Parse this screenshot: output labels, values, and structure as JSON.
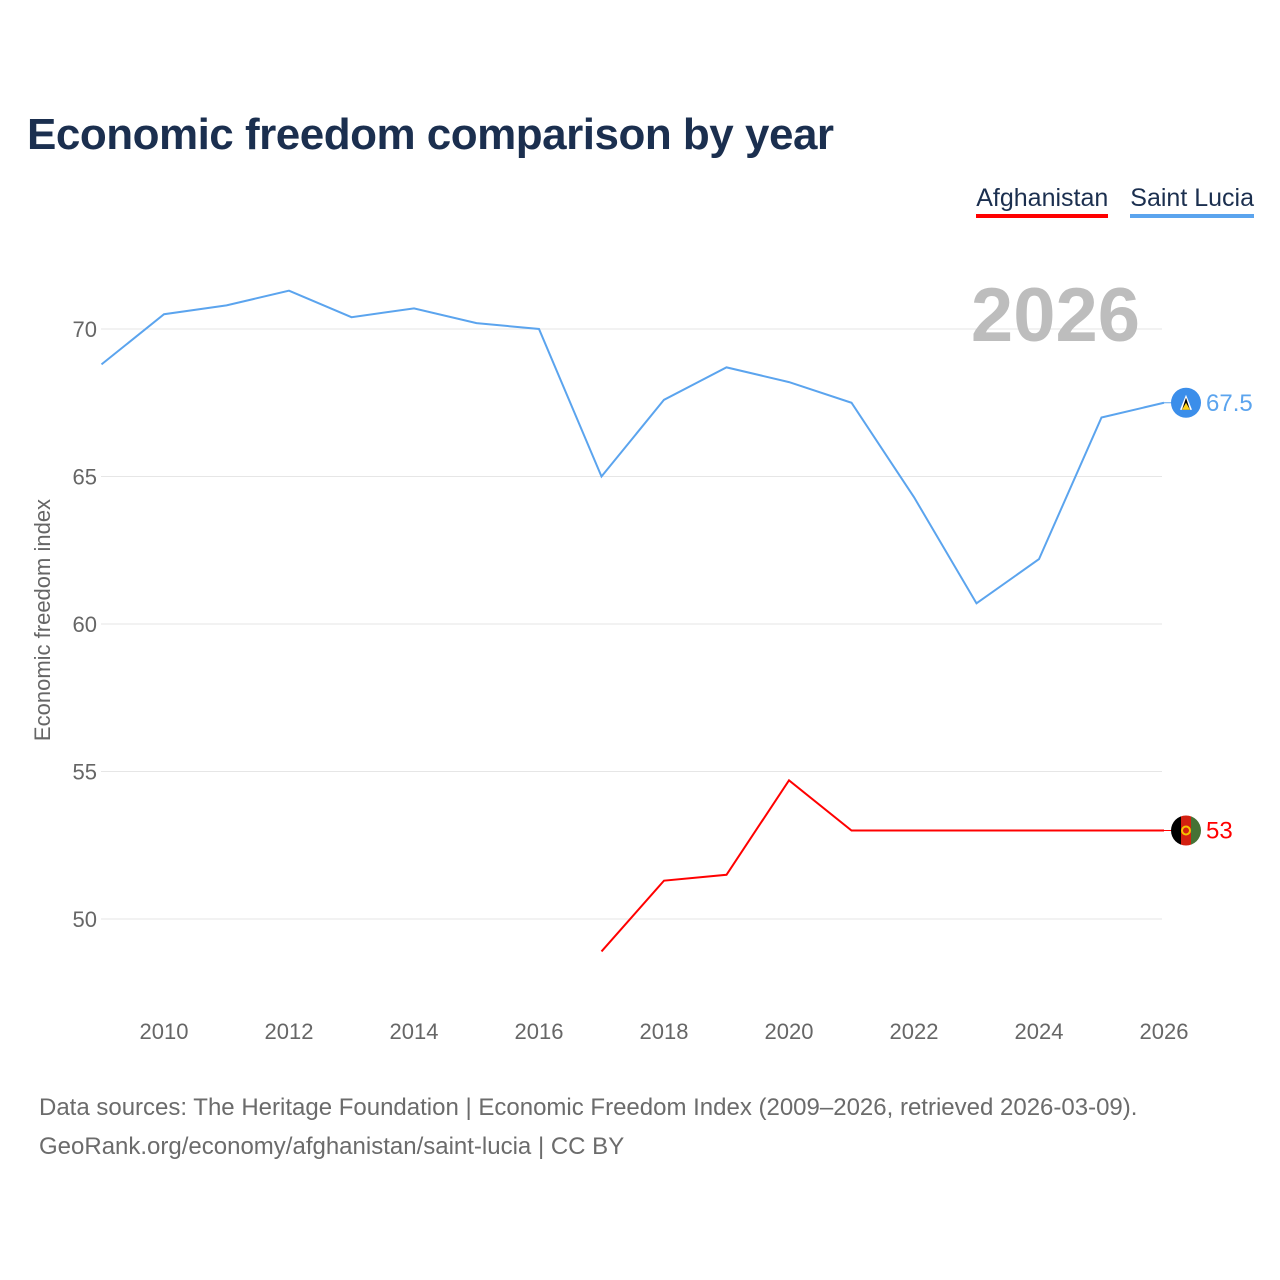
{
  "chart_data": {
    "type": "line",
    "title": "Economic freedom comparison by year",
    "xlabel": "",
    "ylabel": "Economic freedom index",
    "xlim": [
      2009,
      2026
    ],
    "ylim": [
      47,
      72.5
    ],
    "x_ticks": [
      2010,
      2012,
      2014,
      2016,
      2018,
      2020,
      2022,
      2024,
      2026
    ],
    "y_ticks": [
      50,
      55,
      60,
      65,
      70
    ],
    "grid": true,
    "legend_position": "top-right",
    "year_overlay": "2026",
    "series": [
      {
        "name": "Afghanistan",
        "color": "#ff0000",
        "end_label": "53",
        "x": [
          2017,
          2018,
          2019,
          2020,
          2021,
          2022,
          2023,
          2024,
          2025,
          2026
        ],
        "values": [
          48.9,
          51.3,
          51.5,
          54.7,
          53.0,
          53.0,
          53.0,
          53.0,
          53.0,
          53.0
        ]
      },
      {
        "name": "Saint Lucia",
        "color": "#5ba4ee",
        "end_label": "67.5",
        "x": [
          2009,
          2010,
          2011,
          2012,
          2013,
          2014,
          2015,
          2016,
          2017,
          2018,
          2019,
          2020,
          2021,
          2022,
          2023,
          2024,
          2025,
          2026
        ],
        "values": [
          68.8,
          70.5,
          70.8,
          71.3,
          70.4,
          70.7,
          70.2,
          70.0,
          65.0,
          67.6,
          68.7,
          68.2,
          67.5,
          64.3,
          60.7,
          62.2,
          67.0,
          67.5
        ]
      }
    ]
  },
  "footer": {
    "line1": "Data sources: The Heritage Foundation | Economic Freedom Index (2009–2026, retrieved 2026-03-09).",
    "line2": "GeoRank.org/economy/afghanistan/saint-lucia | CC BY"
  }
}
